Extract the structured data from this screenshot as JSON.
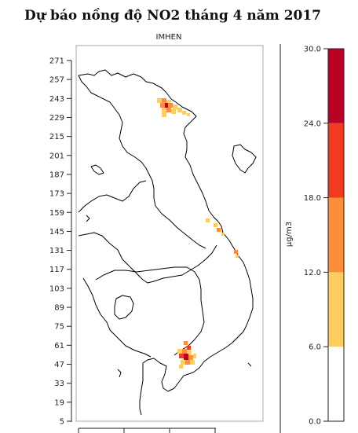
{
  "title": "Dự báo nồng độ NO2 tháng 4 năm 2017",
  "subtitle": "IMHEN",
  "colors": {
    "frame": "#aaaaaa",
    "coast": "#000000",
    "bins": [
      "#ffffff",
      "#fecd5f",
      "#fc8d3c",
      "#f03b20",
      "#bd0026"
    ]
  },
  "chart_data": {
    "type": "heatmap",
    "y_ticks": [
      "271",
      "257",
      "243",
      "229",
      "215",
      "201",
      "187",
      "173",
      "159",
      "145",
      "131",
      "117",
      "103",
      "89",
      "75",
      "61",
      "47",
      "33",
      "19",
      "5"
    ],
    "colorbar": {
      "unit": "µg/m3",
      "labels": [
        "30.0",
        "24.0",
        "18.0",
        "12.0",
        "6.0",
        "0.0"
      ],
      "breaks": [
        0,
        6,
        12,
        18,
        24,
        30
      ]
    }
  }
}
